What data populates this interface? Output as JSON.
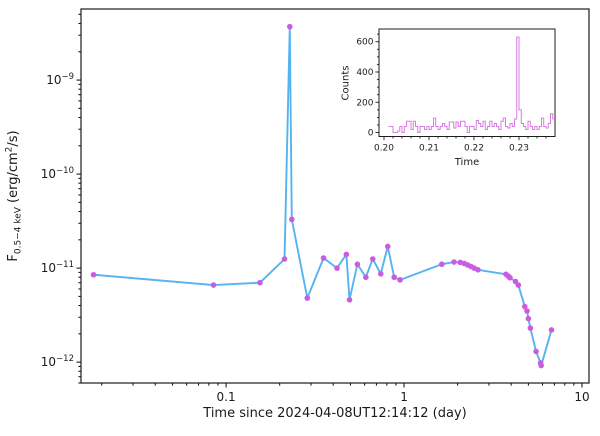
{
  "figure": {
    "background": "#ffffff",
    "axis_color": "#1c1c1c",
    "line_color": "#55b4ef",
    "marker_color": "#c95cdf",
    "inset_line_color": "#d97ce3"
  },
  "chart_data": [
    {
      "type": "line",
      "title": "",
      "xlabel": "Time since 2024-04-08UT12:14:12 (day)",
      "ylabel": "F_0.5-4 keV (erg/cm^2/s)",
      "ylabel_parts": {
        "f": "F",
        "sub": "0.5−4 keV",
        "mid": " (erg/cm",
        "sup": "2",
        "end": "/s)"
      },
      "xscale": "log",
      "yscale": "log",
      "grid": false,
      "legend": null,
      "xlim": [
        0.0153,
        10.95
      ],
      "ylim": [
        6e-13,
        5.7e-09
      ],
      "x_ticks": [
        {
          "v": 0.1,
          "label": "0.1"
        },
        {
          "v": 1,
          "label": "1"
        },
        {
          "v": 10,
          "label": "10"
        }
      ],
      "y_ticks": [
        {
          "v": 1e-09,
          "base": "10",
          "exp": "−9"
        },
        {
          "v": 1e-10,
          "base": "10",
          "exp": "−10"
        },
        {
          "v": 1e-11,
          "base": "10",
          "exp": "−11"
        },
        {
          "v": 1e-12,
          "base": "10",
          "exp": "−12"
        }
      ],
      "x": [
        0.018,
        0.085,
        0.155,
        0.213,
        0.228,
        0.234,
        0.286,
        0.353,
        0.42,
        0.474,
        0.494,
        0.547,
        0.61,
        0.667,
        0.74,
        0.81,
        0.88,
        0.95,
        1.63,
        1.91,
        2.07,
        2.18,
        2.28,
        2.38,
        2.48,
        2.6,
        3.74,
        3.86,
        3.94,
        4.23,
        4.39,
        4.77,
        4.91,
        5.0,
        5.13,
        5.52,
        5.85,
        5.9,
        6.74
      ],
      "y": [
        8.5e-12,
        6.6e-12,
        7e-12,
        1.25e-11,
        3.7e-09,
        3.3e-11,
        4.8e-12,
        1.28e-11,
        1e-11,
        1.4e-11,
        4.6e-12,
        1.1e-11,
        8e-12,
        1.25e-11,
        8.7e-12,
        1.7e-11,
        8e-12,
        7.5e-12,
        1.1e-11,
        1.16e-11,
        1.15e-11,
        1.12e-11,
        1.08e-11,
        1.04e-11,
        1e-11,
        9.6e-12,
        8.6e-12,
        8.2e-12,
        7.9e-12,
        7.2e-12,
        6.6e-12,
        3.9e-12,
        3.5e-12,
        2.9e-12,
        2.3e-12,
        1.3e-12,
        9.8e-13,
        9.2e-13,
        2.2e-12
      ]
    },
    {
      "type": "step",
      "title": "",
      "xlabel": "Time",
      "ylabel": "Counts",
      "xscale": "linear",
      "yscale": "linear",
      "grid": false,
      "xlim": [
        0.19889,
        0.238
      ],
      "ylim": [
        -26,
        684
      ],
      "x_ticks": [
        {
          "v": 0.2,
          "label": "0.20"
        },
        {
          "v": 0.21,
          "label": "0.21"
        },
        {
          "v": 0.22,
          "label": "0.22"
        },
        {
          "v": 0.23,
          "label": "0.23"
        }
      ],
      "x_minor_step": 0.002,
      "y_ticks": [
        {
          "v": 0,
          "label": "0"
        },
        {
          "v": 200,
          "label": "200"
        },
        {
          "v": 400,
          "label": "400"
        },
        {
          "v": 600,
          "label": "600"
        }
      ],
      "y_minor_step": 50,
      "bins_start": 0.201,
      "bin_width": 0.0005,
      "counts": [
        40,
        40,
        0,
        0,
        10,
        40,
        0,
        40,
        75,
        75,
        20,
        75,
        40,
        0,
        40,
        40,
        20,
        40,
        20,
        40,
        95,
        40,
        20,
        40,
        60,
        40,
        20,
        70,
        70,
        30,
        70,
        40,
        75,
        75,
        40,
        0,
        40,
        40,
        20,
        80,
        60,
        40,
        75,
        20,
        40,
        75,
        40,
        60,
        40,
        20,
        75,
        95,
        40,
        30,
        60,
        40,
        90,
        630,
        150,
        60,
        40,
        20,
        75,
        40,
        20,
        40,
        20,
        40,
        95,
        40,
        30,
        60,
        125,
        90
      ]
    }
  ]
}
